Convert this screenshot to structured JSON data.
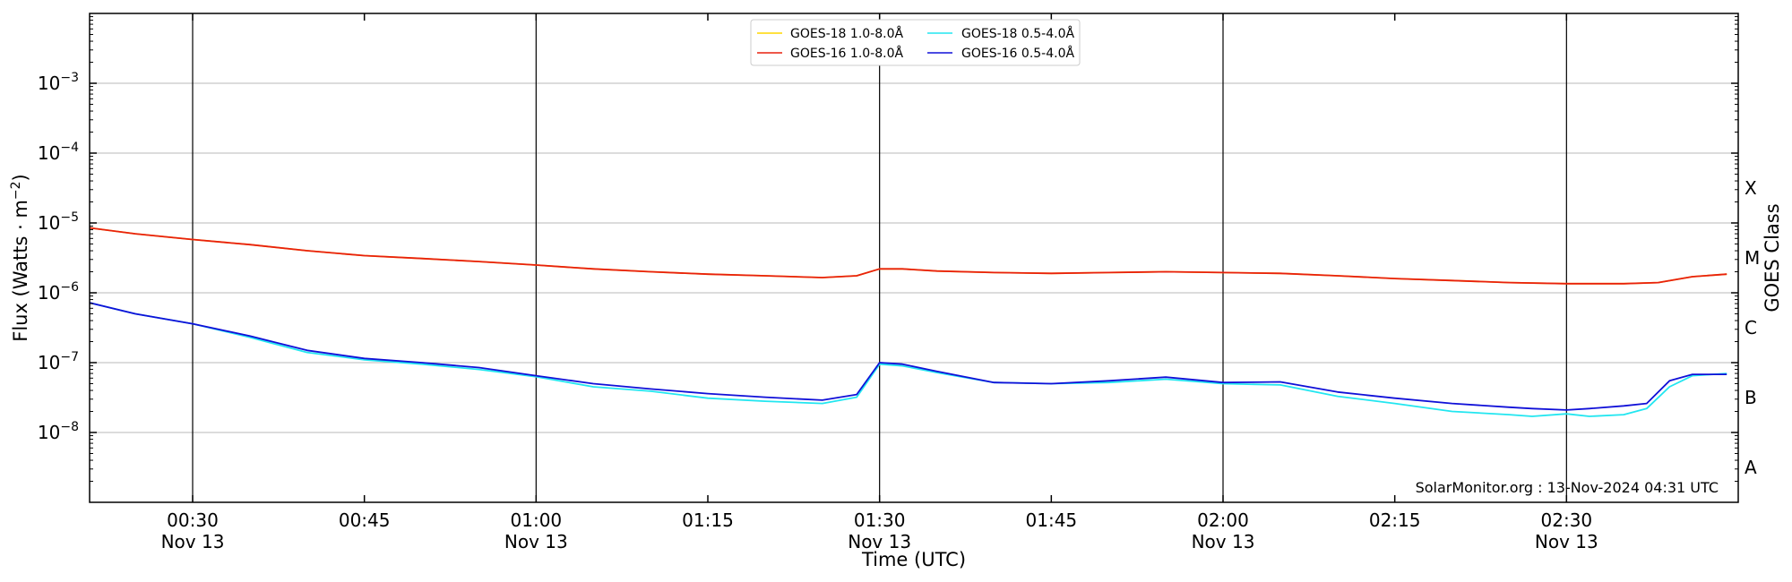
{
  "chart_data": {
    "type": "line",
    "xlabel": "Time (UTC)",
    "ylabel_main": "Flux (Watts · m",
    "ylabel_sup": "−2",
    "ylabel_close": ")",
    "right_label": "GOES Class",
    "credit": "SolarMonitor.org : 13-Nov-2024 04:31 UTC",
    "yscale": "log",
    "ylim": [
      "1e-9",
      "1e-2"
    ],
    "xlim": [
      "00:21",
      "02:45"
    ],
    "grid": "horizontal",
    "legend_position": "top-center",
    "y_ticks": [
      {
        "value": -8,
        "label": "10",
        "exp": "−8"
      },
      {
        "value": -7,
        "label": "10",
        "exp": "−7"
      },
      {
        "value": -6,
        "label": "10",
        "exp": "−6"
      },
      {
        "value": -5,
        "label": "10",
        "exp": "−5"
      },
      {
        "value": -4,
        "label": "10",
        "exp": "−4"
      },
      {
        "value": -3,
        "label": "10",
        "exp": "−3"
      }
    ],
    "x_ticks": [
      {
        "time": "00:30",
        "label": "00:30",
        "date": "Nov 13",
        "major": true
      },
      {
        "time": "00:45",
        "label": "00:45",
        "date": "",
        "major": false
      },
      {
        "time": "01:00",
        "label": "01:00",
        "date": "Nov 13",
        "major": true
      },
      {
        "time": "01:15",
        "label": "01:15",
        "date": "",
        "major": false
      },
      {
        "time": "01:30",
        "label": "01:30",
        "date": "Nov 13",
        "major": true
      },
      {
        "time": "01:45",
        "label": "01:45",
        "date": "",
        "major": false
      },
      {
        "time": "02:00",
        "label": "02:00",
        "date": "Nov 13",
        "major": true
      },
      {
        "time": "02:15",
        "label": "02:15",
        "date": "",
        "major": false
      },
      {
        "time": "02:30",
        "label": "02:30",
        "date": "Nov 13",
        "major": true
      }
    ],
    "goes_classes": [
      {
        "label": "X",
        "flux": "1e-4"
      },
      {
        "label": "M",
        "flux": "1e-5"
      },
      {
        "label": "C",
        "flux": "1e-6"
      },
      {
        "label": "B",
        "flux": "1e-7"
      },
      {
        "label": "A",
        "flux": "1e-8"
      }
    ],
    "series": [
      {
        "name": "GOES-18 1.0-8.0Å",
        "color": "#ffd700",
        "x": [
          "00:21",
          "00:25",
          "00:30",
          "00:35",
          "00:40",
          "00:45",
          "00:50",
          "00:55",
          "01:00",
          "01:05",
          "01:10",
          "01:15",
          "01:20",
          "01:25",
          "01:28",
          "01:30",
          "01:32",
          "01:35",
          "01:40",
          "01:45",
          "01:50",
          "01:55",
          "02:00",
          "02:05",
          "02:10",
          "02:15",
          "02:20",
          "02:25",
          "02:30",
          "02:35",
          "02:38",
          "02:41",
          "02:44"
        ],
        "y": [
          "8.5e-6",
          "7e-6",
          "5.8e-6",
          "4.9e-6",
          "4e-6",
          "3.4e-6",
          "3.1e-6",
          "2.8e-6",
          "2.5e-6",
          "2.2e-6",
          "2e-6",
          "1.85e-6",
          "1.75e-6",
          "1.65e-6",
          "1.75e-6",
          "2.2e-6",
          "2.2e-6",
          "2.05e-6",
          "1.95e-6",
          "1.9e-6",
          "1.95e-6",
          "2e-6",
          "1.95e-6",
          "1.9e-6",
          "1.75e-6",
          "1.6e-6",
          "1.5e-6",
          "1.4e-6",
          "1.35e-6",
          "1.35e-6",
          "1.4e-6",
          "1.7e-6",
          "1.85e-6"
        ]
      },
      {
        "name": "GOES-16 1.0-8.0Å",
        "color": "#e8200f",
        "x": [
          "00:21",
          "00:25",
          "00:30",
          "00:35",
          "00:40",
          "00:45",
          "00:50",
          "00:55",
          "01:00",
          "01:05",
          "01:10",
          "01:15",
          "01:20",
          "01:25",
          "01:28",
          "01:30",
          "01:32",
          "01:35",
          "01:40",
          "01:45",
          "01:50",
          "01:55",
          "02:00",
          "02:05",
          "02:10",
          "02:15",
          "02:20",
          "02:25",
          "02:30",
          "02:35",
          "02:38",
          "02:41",
          "02:44"
        ],
        "y": [
          "8.5e-6",
          "7e-6",
          "5.8e-6",
          "4.9e-6",
          "4e-6",
          "3.4e-6",
          "3.1e-6",
          "2.8e-6",
          "2.5e-6",
          "2.2e-6",
          "2e-6",
          "1.85e-6",
          "1.75e-6",
          "1.65e-6",
          "1.75e-6",
          "2.2e-6",
          "2.2e-6",
          "2.05e-6",
          "1.95e-6",
          "1.9e-6",
          "1.95e-6",
          "2e-6",
          "1.95e-6",
          "1.9e-6",
          "1.75e-6",
          "1.6e-6",
          "1.5e-6",
          "1.4e-6",
          "1.35e-6",
          "1.35e-6",
          "1.4e-6",
          "1.7e-6",
          "1.85e-6"
        ]
      },
      {
        "name": "GOES-18 0.5-4.0Å",
        "color": "#22e6f0",
        "x": [
          "00:21",
          "00:25",
          "00:30",
          "00:35",
          "00:40",
          "00:45",
          "00:50",
          "00:55",
          "01:00",
          "01:05",
          "01:10",
          "01:15",
          "01:20",
          "01:25",
          "01:28",
          "01:30",
          "01:32",
          "01:35",
          "01:40",
          "01:45",
          "01:50",
          "01:55",
          "02:00",
          "02:05",
          "02:10",
          "02:15",
          "02:20",
          "02:25",
          "02:27",
          "02:30",
          "02:32",
          "02:35",
          "02:37",
          "02:39",
          "02:41",
          "02:44"
        ],
        "y": [
          "7.2e-7",
          "5e-7",
          "3.6e-7",
          "2.3e-7",
          "1.4e-7",
          "1.1e-7",
          "9.5e-8",
          "8e-8",
          "6.3e-8",
          "4.5e-8",
          "3.9e-8",
          "3.1e-8",
          "2.8e-8",
          "2.6e-8",
          "3.2e-8",
          "9.5e-8",
          "9e-8",
          "7.2e-8",
          "5.2e-8",
          "5e-8",
          "5.2e-8",
          "5.8e-8",
          "5e-8",
          "4.8e-8",
          "3.3e-8",
          "2.6e-8",
          "2e-8",
          "1.8e-8",
          "1.7e-8",
          "1.85e-8",
          "1.7e-8",
          "1.8e-8",
          "2.2e-8",
          "4.5e-8",
          "6.5e-8",
          "7e-8"
        ]
      },
      {
        "name": "GOES-16 0.5-4.0Å",
        "color": "#1010d8",
        "x": [
          "00:21",
          "00:25",
          "00:30",
          "00:35",
          "00:40",
          "00:45",
          "00:50",
          "00:55",
          "01:00",
          "01:05",
          "01:10",
          "01:15",
          "01:20",
          "01:25",
          "01:28",
          "01:30",
          "01:32",
          "01:35",
          "01:40",
          "01:45",
          "01:50",
          "01:55",
          "02:00",
          "02:05",
          "02:10",
          "02:15",
          "02:20",
          "02:25",
          "02:27",
          "02:30",
          "02:32",
          "02:35",
          "02:37",
          "02:39",
          "02:41",
          "02:44"
        ],
        "y": [
          "7.2e-7",
          "5e-7",
          "3.6e-7",
          "2.4e-7",
          "1.5e-7",
          "1.15e-7",
          "1e-7",
          "8.5e-8",
          "6.5e-8",
          "5e-8",
          "4.2e-8",
          "3.6e-8",
          "3.2e-8",
          "2.9e-8",
          "3.5e-8",
          "1e-7",
          "9.5e-8",
          "7.5e-8",
          "5.2e-8",
          "5e-8",
          "5.5e-8",
          "6.2e-8",
          "5.2e-8",
          "5.3e-8",
          "3.8e-8",
          "3.1e-8",
          "2.6e-8",
          "2.3e-8",
          "2.2e-8",
          "2.1e-8",
          "2.2e-8",
          "2.4e-8",
          "2.6e-8",
          "5.5e-8",
          "6.8e-8",
          "6.8e-8"
        ]
      }
    ]
  }
}
